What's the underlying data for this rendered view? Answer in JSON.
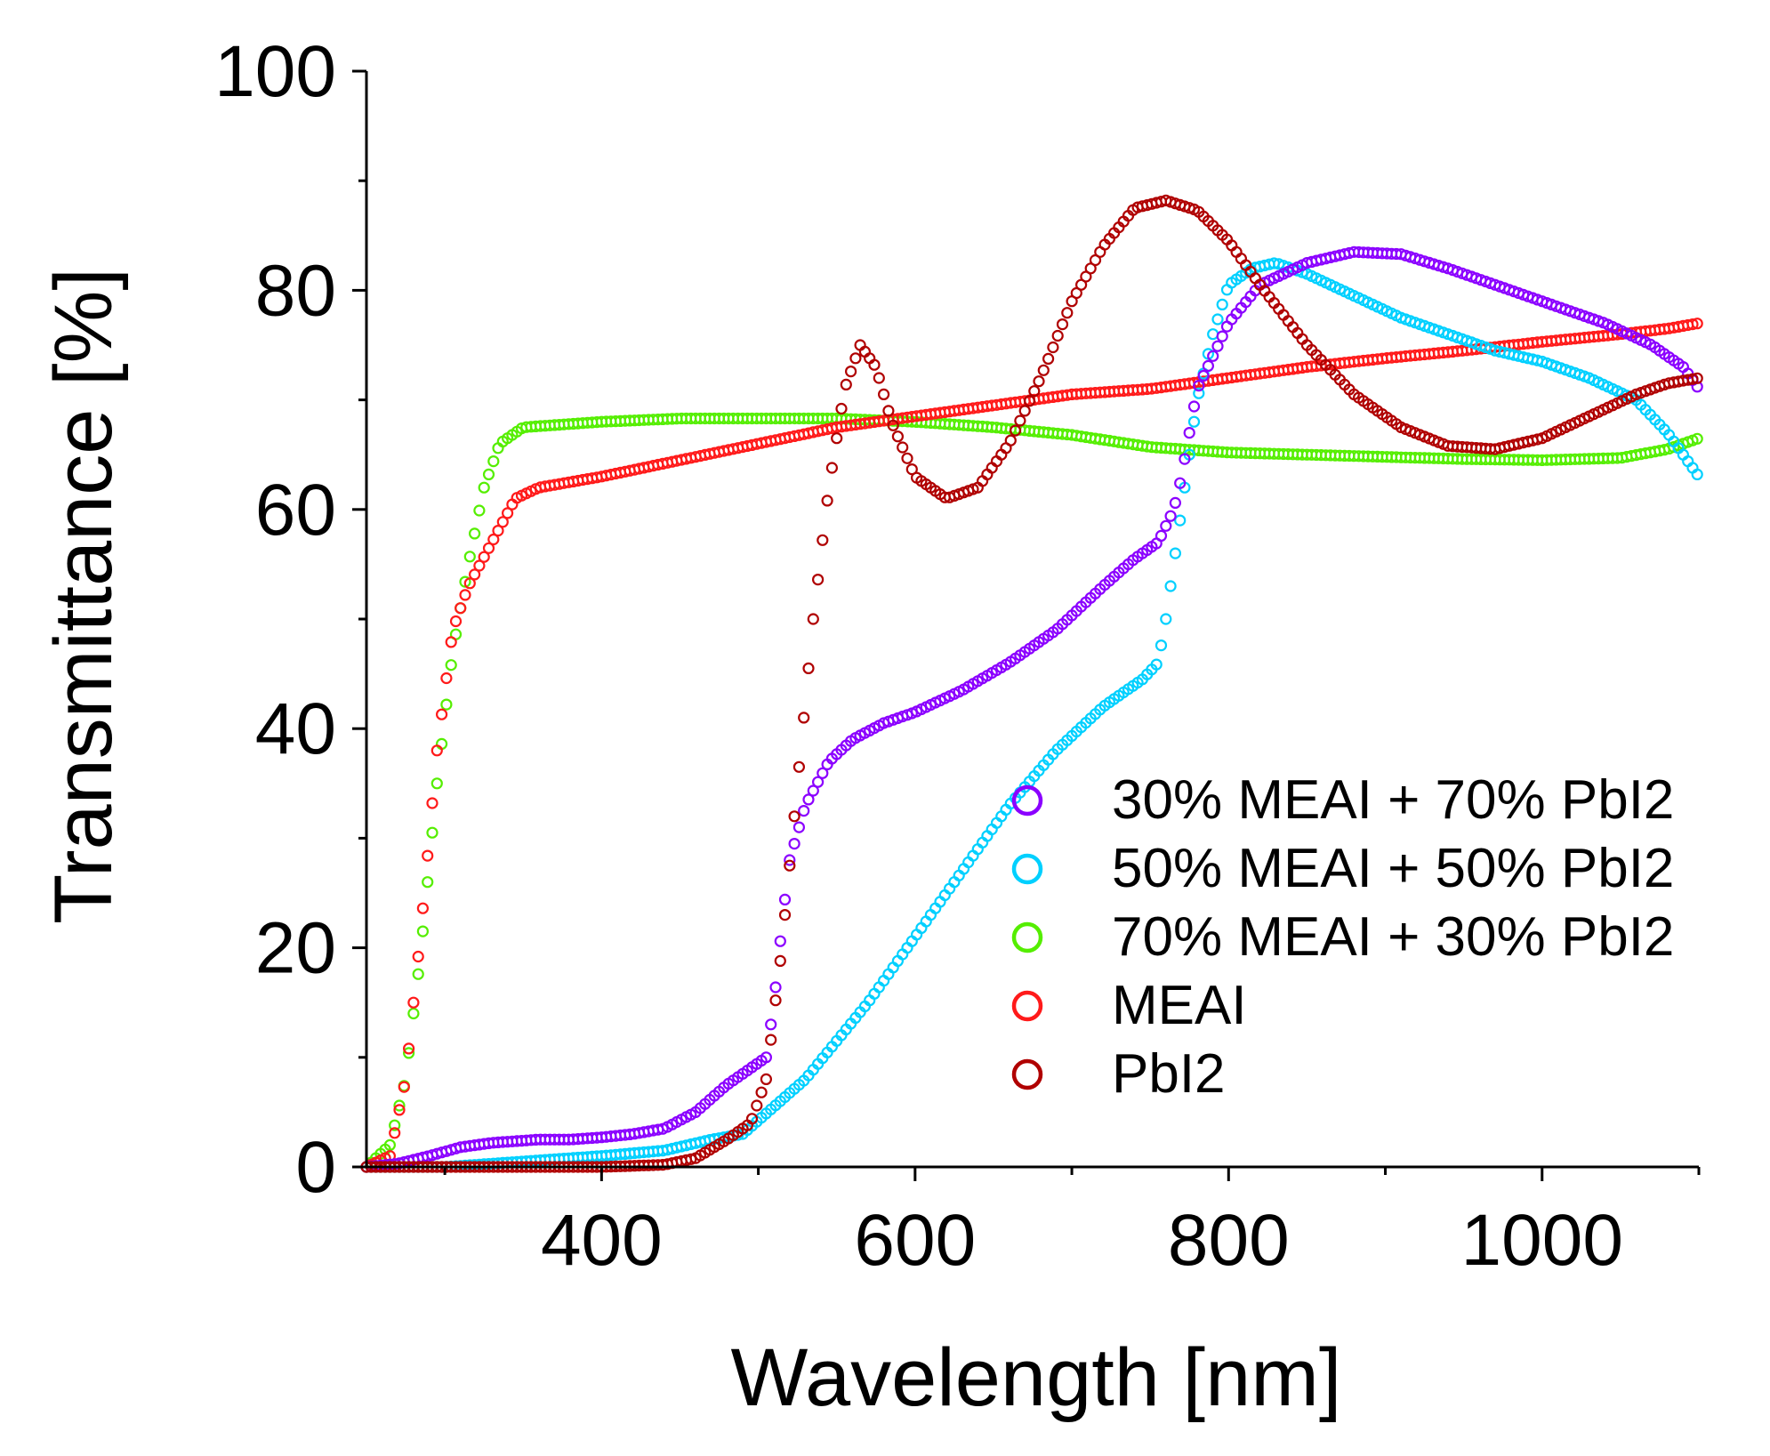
{
  "chart_data": {
    "type": "scatter",
    "title": "",
    "xlabel": "Wavelength [nm]",
    "ylabel": "Transmittance [%]",
    "xlim": [
      250,
      1100
    ],
    "ylim": [
      0,
      100
    ],
    "xticks": [
      400,
      600,
      800,
      1000
    ],
    "yticks": [
      0,
      20,
      40,
      60,
      80,
      100
    ],
    "x_minor_step": 100,
    "y_minor_step": 10,
    "grid": false,
    "legend_position": "lower-right",
    "marker": "open-circle",
    "series": [
      {
        "name": "30% MEAI + 70% PbI2",
        "color": "#8b00ff",
        "points": [
          [
            250,
            0
          ],
          [
            270,
            0.3
          ],
          [
            290,
            1
          ],
          [
            310,
            1.8
          ],
          [
            330,
            2.2
          ],
          [
            360,
            2.5
          ],
          [
            380,
            2.5
          ],
          [
            400,
            2.7
          ],
          [
            420,
            3
          ],
          [
            440,
            3.5
          ],
          [
            460,
            5
          ],
          [
            480,
            7.5
          ],
          [
            495,
            9
          ],
          [
            505,
            10
          ],
          [
            510,
            15
          ],
          [
            515,
            22
          ],
          [
            520,
            28
          ],
          [
            530,
            33
          ],
          [
            545,
            37
          ],
          [
            560,
            39
          ],
          [
            580,
            40.5
          ],
          [
            600,
            41.5
          ],
          [
            630,
            43.5
          ],
          [
            660,
            46
          ],
          [
            690,
            49
          ],
          [
            720,
            53
          ],
          [
            740,
            55.5
          ],
          [
            755,
            57
          ],
          [
            765,
            60
          ],
          [
            770,
            63
          ],
          [
            775,
            67
          ],
          [
            780,
            71
          ],
          [
            800,
            77
          ],
          [
            820,
            80.5
          ],
          [
            850,
            82.5
          ],
          [
            880,
            83.5
          ],
          [
            910,
            83.3
          ],
          [
            940,
            82
          ],
          [
            970,
            80.5
          ],
          [
            1000,
            79
          ],
          [
            1040,
            77
          ],
          [
            1070,
            75
          ],
          [
            1090,
            73
          ],
          [
            1100,
            71
          ]
        ]
      },
      {
        "name": "50% MEAI + 50% PbI2",
        "color": "#00d0ff",
        "points": [
          [
            250,
            0
          ],
          [
            300,
            0
          ],
          [
            350,
            0.5
          ],
          [
            400,
            1
          ],
          [
            440,
            1.5
          ],
          [
            470,
            2.5
          ],
          [
            490,
            3
          ],
          [
            510,
            5.5
          ],
          [
            530,
            8
          ],
          [
            550,
            11.5
          ],
          [
            570,
            15
          ],
          [
            600,
            21
          ],
          [
            630,
            27
          ],
          [
            660,
            33
          ],
          [
            690,
            38
          ],
          [
            720,
            42
          ],
          [
            745,
            44.5
          ],
          [
            755,
            46
          ],
          [
            760,
            50
          ],
          [
            765,
            55
          ],
          [
            770,
            60
          ],
          [
            775,
            65
          ],
          [
            780,
            70
          ],
          [
            790,
            76
          ],
          [
            800,
            80.5
          ],
          [
            815,
            82
          ],
          [
            830,
            82.5
          ],
          [
            850,
            81.5
          ],
          [
            880,
            79.5
          ],
          [
            910,
            77.5
          ],
          [
            940,
            76
          ],
          [
            970,
            74.5
          ],
          [
            1000,
            73.5
          ],
          [
            1030,
            72
          ],
          [
            1060,
            70
          ],
          [
            1080,
            67
          ],
          [
            1100,
            63
          ]
        ]
      },
      {
        "name": "70% MEAI + 30% PbI2",
        "color": "#55ee00",
        "points": [
          [
            250,
            0
          ],
          [
            265,
            2
          ],
          [
            275,
            8
          ],
          [
            285,
            20
          ],
          [
            295,
            35
          ],
          [
            305,
            47
          ],
          [
            315,
            55
          ],
          [
            325,
            62
          ],
          [
            335,
            66
          ],
          [
            350,
            67.5
          ],
          [
            400,
            68
          ],
          [
            450,
            68.3
          ],
          [
            500,
            68.3
          ],
          [
            550,
            68.3
          ],
          [
            600,
            68
          ],
          [
            650,
            67.5
          ],
          [
            700,
            66.8
          ],
          [
            750,
            65.7
          ],
          [
            800,
            65.2
          ],
          [
            850,
            65
          ],
          [
            900,
            64.8
          ],
          [
            950,
            64.6
          ],
          [
            1000,
            64.5
          ],
          [
            1050,
            64.7
          ],
          [
            1080,
            65.5
          ],
          [
            1100,
            66.5
          ]
        ]
      },
      {
        "name": "MEAI",
        "color": "#ff1a1a",
        "points": [
          [
            250,
            0
          ],
          [
            265,
            1
          ],
          [
            275,
            8
          ],
          [
            285,
            22
          ],
          [
            295,
            38
          ],
          [
            305,
            49
          ],
          [
            315,
            53
          ],
          [
            330,
            57
          ],
          [
            345,
            61
          ],
          [
            360,
            62
          ],
          [
            400,
            63
          ],
          [
            450,
            64.5
          ],
          [
            500,
            66
          ],
          [
            550,
            67.5
          ],
          [
            600,
            68.5
          ],
          [
            650,
            69.5
          ],
          [
            700,
            70.5
          ],
          [
            750,
            71
          ],
          [
            800,
            72
          ],
          [
            850,
            73
          ],
          [
            900,
            73.8
          ],
          [
            950,
            74.5
          ],
          [
            1000,
            75.3
          ],
          [
            1050,
            76
          ],
          [
            1080,
            76.5
          ],
          [
            1100,
            77
          ]
        ]
      },
      {
        "name": "PbI2",
        "color": "#b00000",
        "points": [
          [
            250,
            0
          ],
          [
            300,
            0
          ],
          [
            350,
            0
          ],
          [
            400,
            0
          ],
          [
            440,
            0.2
          ],
          [
            460,
            0.8
          ],
          [
            480,
            2.5
          ],
          [
            495,
            4
          ],
          [
            505,
            8
          ],
          [
            515,
            20
          ],
          [
            525,
            35
          ],
          [
            535,
            50
          ],
          [
            545,
            62
          ],
          [
            555,
            71
          ],
          [
            565,
            75
          ],
          [
            575,
            73
          ],
          [
            585,
            68
          ],
          [
            600,
            63
          ],
          [
            620,
            61
          ],
          [
            640,
            62
          ],
          [
            660,
            66
          ],
          [
            680,
            72
          ],
          [
            700,
            79
          ],
          [
            720,
            84
          ],
          [
            740,
            87.5
          ],
          [
            760,
            88.2
          ],
          [
            780,
            87.3
          ],
          [
            800,
            84.5
          ],
          [
            820,
            80.5
          ],
          [
            850,
            75
          ],
          [
            880,
            70.5
          ],
          [
            910,
            67.5
          ],
          [
            940,
            65.8
          ],
          [
            970,
            65.5
          ],
          [
            1000,
            66.5
          ],
          [
            1030,
            68.5
          ],
          [
            1060,
            70.5
          ],
          [
            1080,
            71.5
          ],
          [
            1100,
            72
          ]
        ]
      }
    ]
  }
}
